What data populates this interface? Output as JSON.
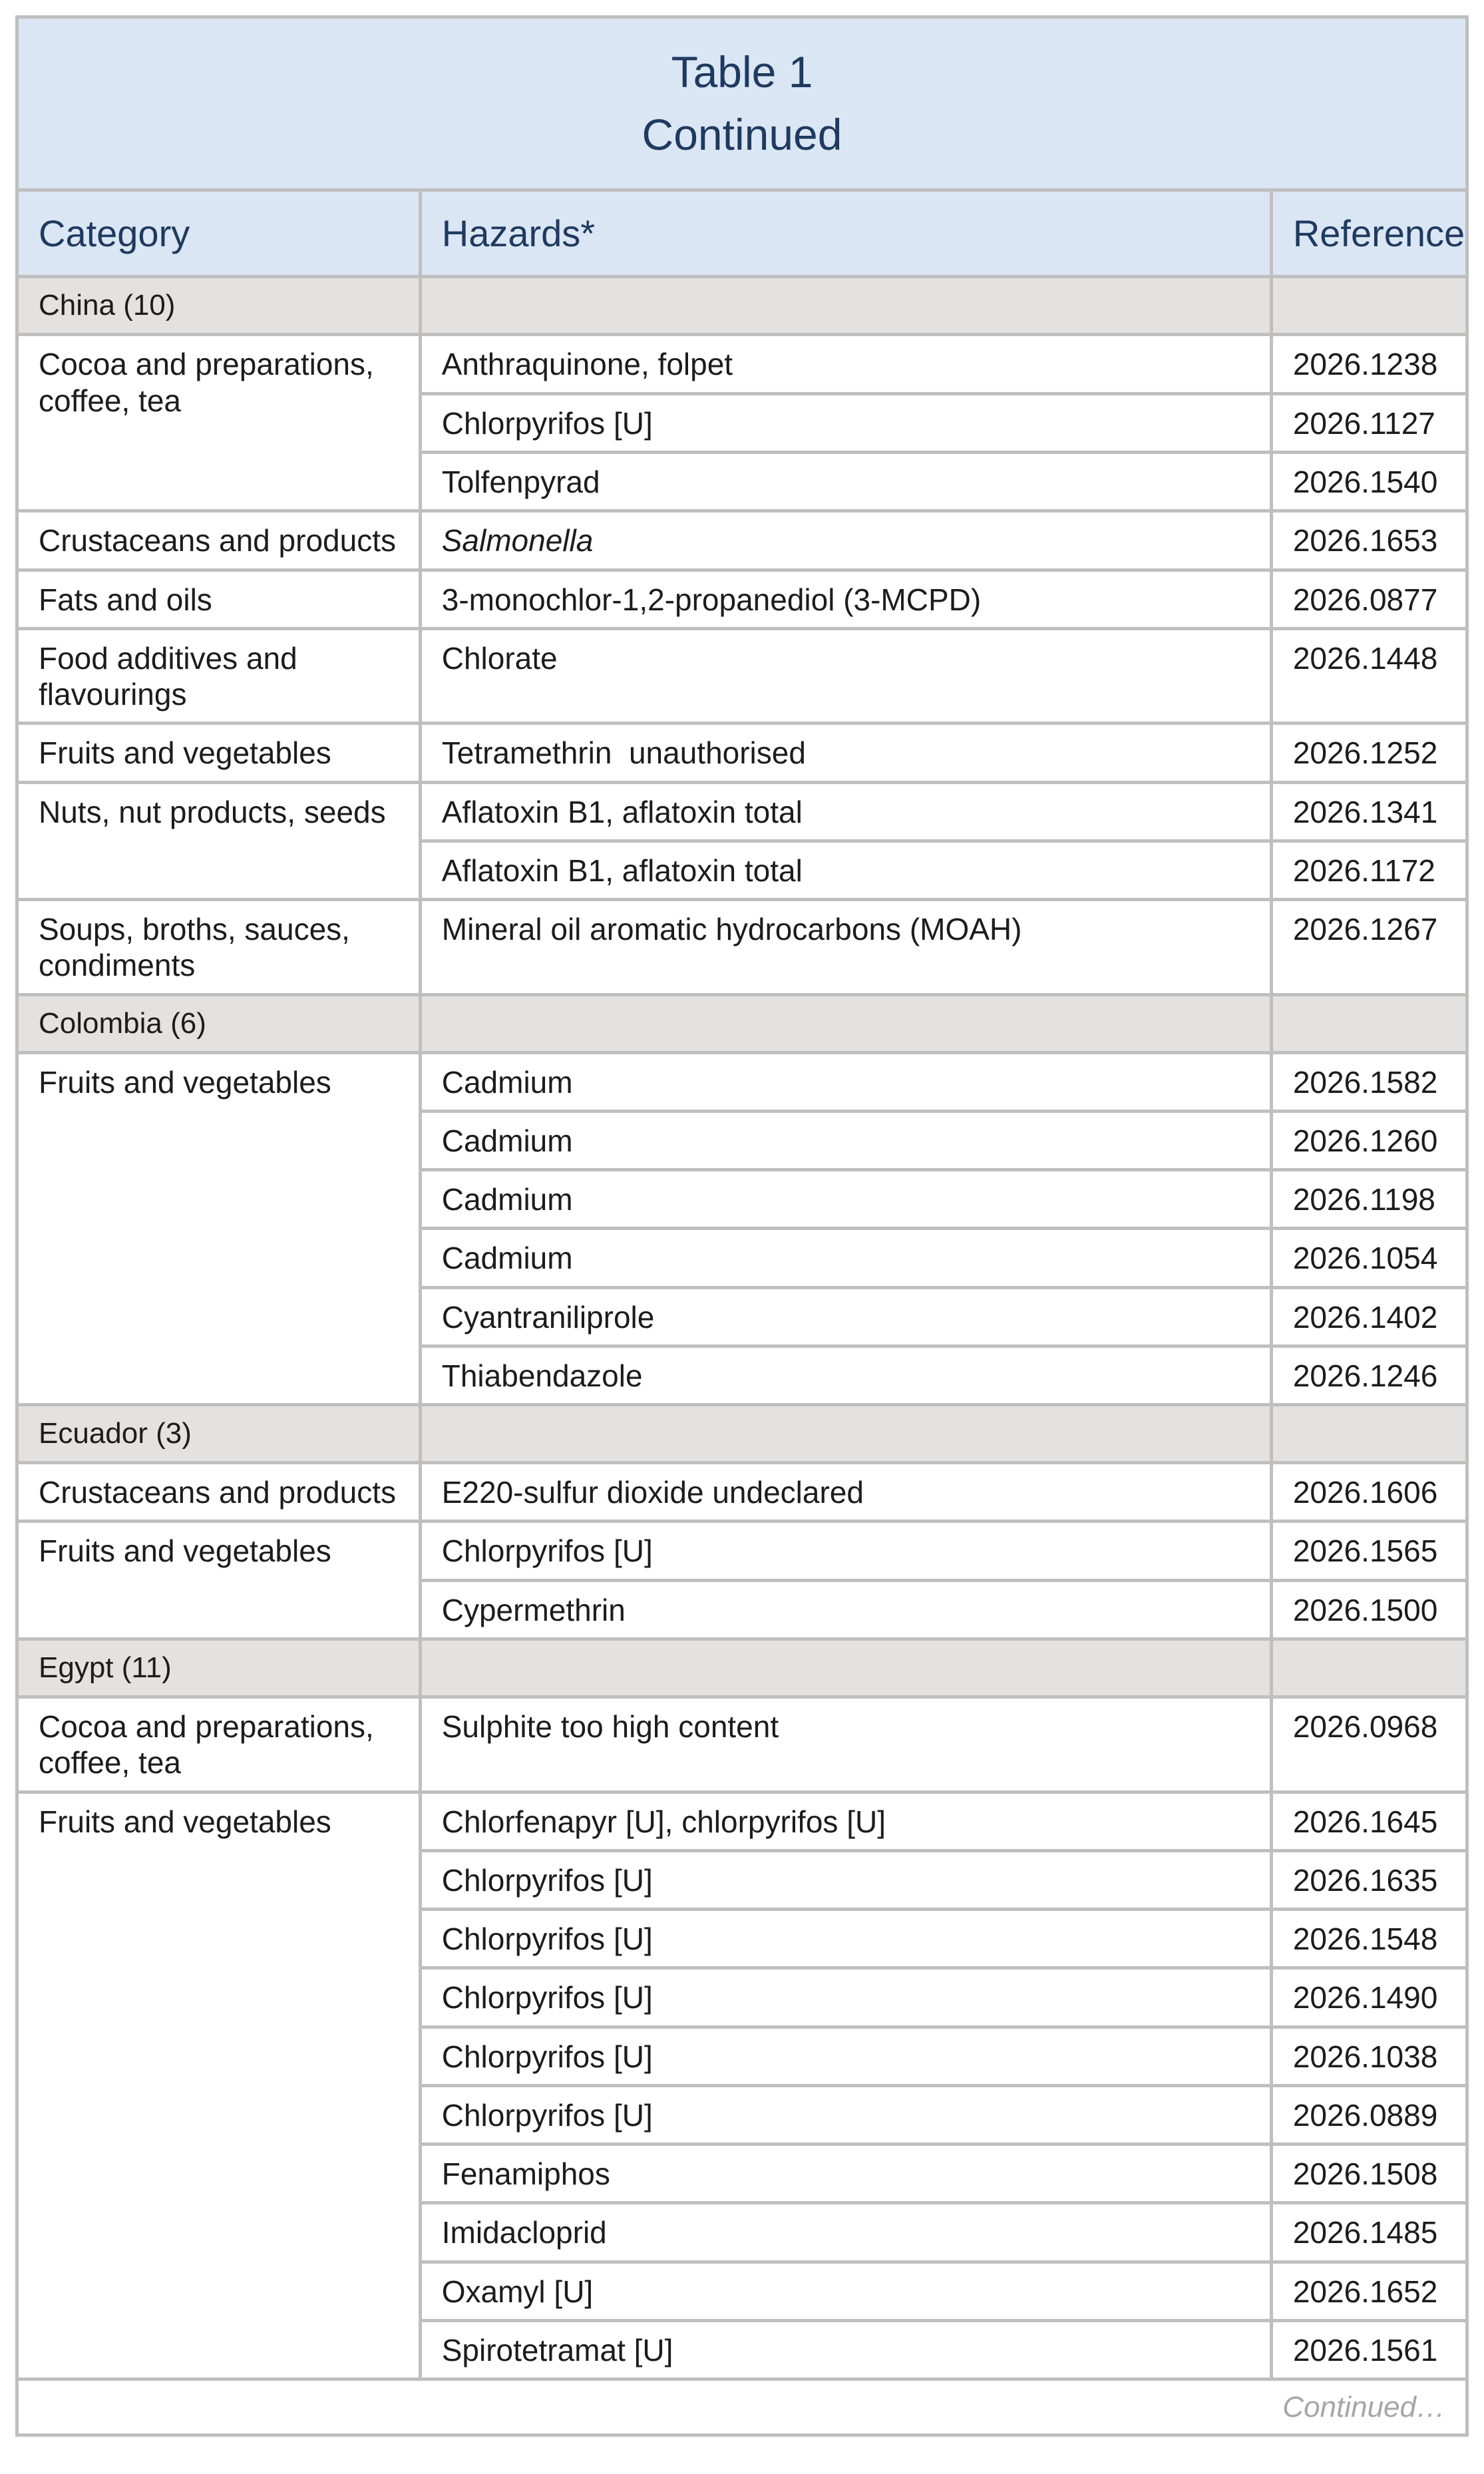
{
  "title": {
    "line1": "Table 1",
    "line2": "Continued"
  },
  "columns": [
    "Category",
    "Hazards*",
    "Reference"
  ],
  "sections": [
    {
      "name": "China (10)",
      "groups": [
        {
          "category": "Cocoa and preparations, coffee, tea",
          "rows": [
            {
              "hazard": "Anthraquinone, folpet",
              "italic": false,
              "reference": "2026.1238"
            },
            {
              "hazard": "Chlorpyrifos [U]",
              "italic": false,
              "reference": "2026.1127"
            },
            {
              "hazard": "Tolfenpyrad",
              "italic": false,
              "reference": "2026.1540"
            }
          ]
        },
        {
          "category": "Crustaceans and products",
          "rows": [
            {
              "hazard": "Salmonella",
              "italic": true,
              "reference": "2026.1653"
            }
          ]
        },
        {
          "category": "Fats and oils",
          "rows": [
            {
              "hazard": "3-monochlor-1,2-propanediol (3-MCPD)",
              "italic": false,
              "reference": "2026.0877"
            }
          ]
        },
        {
          "category": "Food additives and flavourings",
          "rows": [
            {
              "hazard": "Chlorate",
              "italic": false,
              "reference": "2026.1448"
            }
          ]
        },
        {
          "category": "Fruits and vegetables",
          "rows": [
            {
              "hazard": "Tetramethrin  unauthorised",
              "italic": false,
              "reference": "2026.1252"
            }
          ]
        },
        {
          "category": "Nuts, nut products, seeds",
          "rows": [
            {
              "hazard": "Aflatoxin B1, aflatoxin total",
              "italic": false,
              "reference": "2026.1341"
            },
            {
              "hazard": "Aflatoxin B1, aflatoxin total",
              "italic": false,
              "reference": "2026.1172"
            }
          ]
        },
        {
          "category": "Soups, broths, sauces, condiments",
          "rows": [
            {
              "hazard": "Mineral oil aromatic hydrocarbons (MOAH)",
              "italic": false,
              "reference": "2026.1267"
            }
          ]
        }
      ]
    },
    {
      "name": "Colombia (6)",
      "groups": [
        {
          "category": "Fruits and vegetables",
          "rows": [
            {
              "hazard": "Cadmium",
              "italic": false,
              "reference": "2026.1582"
            },
            {
              "hazard": "Cadmium",
              "italic": false,
              "reference": "2026.1260"
            },
            {
              "hazard": "Cadmium",
              "italic": false,
              "reference": "2026.1198"
            },
            {
              "hazard": "Cadmium",
              "italic": false,
              "reference": "2026.1054"
            },
            {
              "hazard": "Cyantraniliprole",
              "italic": false,
              "reference": "2026.1402"
            },
            {
              "hazard": "Thiabendazole",
              "italic": false,
              "reference": "2026.1246"
            }
          ]
        }
      ]
    },
    {
      "name": "Ecuador (3)",
      "groups": [
        {
          "category": "Crustaceans and products",
          "rows": [
            {
              "hazard": "E220-sulfur dioxide undeclared",
              "italic": false,
              "reference": "2026.1606"
            }
          ]
        },
        {
          "category": "Fruits and vegetables",
          "rows": [
            {
              "hazard": "Chlorpyrifos [U]",
              "italic": false,
              "reference": "2026.1565"
            },
            {
              "hazard": "Cypermethrin",
              "italic": false,
              "reference": "2026.1500"
            }
          ]
        }
      ]
    },
    {
      "name": "Egypt (11)",
      "groups": [
        {
          "category": "Cocoa and preparations, coffee, tea",
          "rows": [
            {
              "hazard": "Sulphite too high content",
              "italic": false,
              "reference": "2026.0968"
            }
          ]
        },
        {
          "category": "Fruits and vegetables",
          "rows": [
            {
              "hazard": "Chlorfenapyr [U], chlorpyrifos [U]",
              "italic": false,
              "reference": "2026.1645"
            },
            {
              "hazard": "Chlorpyrifos [U]",
              "italic": false,
              "reference": "2026.1635"
            },
            {
              "hazard": "Chlorpyrifos [U]",
              "italic": false,
              "reference": "2026.1548"
            },
            {
              "hazard": "Chlorpyrifos [U]",
              "italic": false,
              "reference": "2026.1490"
            },
            {
              "hazard": "Chlorpyrifos [U]",
              "italic": false,
              "reference": "2026.1038"
            },
            {
              "hazard": "Chlorpyrifos [U]",
              "italic": false,
              "reference": "2026.0889"
            },
            {
              "hazard": "Fenamiphos",
              "italic": false,
              "reference": "2026.1508"
            },
            {
              "hazard": "Imidacloprid",
              "italic": false,
              "reference": "2026.1485"
            },
            {
              "hazard": "Oxamyl [U]",
              "italic": false,
              "reference": "2026.1652"
            },
            {
              "hazard": "Spirotetramat [U]",
              "italic": false,
              "reference": "2026.1561"
            }
          ]
        }
      ]
    }
  ],
  "footer": {
    "continued": "Continued…"
  },
  "colors": {
    "header_bg": "#dae6f3",
    "header_text": "#1f3a5f",
    "section_bg": "#e3e2e0",
    "border": "#bfbfbf",
    "body_text": "#1c1c1c",
    "footer_text": "#a6a6a6"
  }
}
